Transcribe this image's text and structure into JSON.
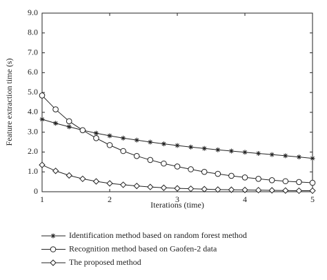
{
  "chart_data": {
    "type": "line",
    "xlabel": "Iterations (time)",
    "ylabel": "Feature extraction time (s)",
    "x": [
      1,
      1.2,
      1.4,
      1.6,
      1.8,
      2,
      2.2,
      2.4,
      2.6,
      2.8,
      3,
      3.2,
      3.4,
      3.6,
      3.8,
      4,
      4.2,
      4.4,
      4.6,
      4.8,
      5
    ],
    "xlim": [
      1,
      5
    ],
    "xticks": [
      1,
      2,
      3,
      4,
      5
    ],
    "ylim": [
      0,
      9
    ],
    "yticks": [
      0,
      {
        "value": 1,
        "label": "1.0"
      },
      {
        "value": 2,
        "label": "2.0"
      },
      {
        "value": 3,
        "label": "3.0"
      },
      {
        "value": 4,
        "label": "4.0"
      },
      {
        "value": 5,
        "label": "5.0"
      },
      {
        "value": 6,
        "label": "6.0"
      },
      {
        "value": 7,
        "label": "7.0"
      },
      {
        "value": 8,
        "label": "8.0"
      },
      {
        "value": 9,
        "label": "9.0"
      }
    ],
    "series": [
      {
        "name": "Identification method based on random forest method",
        "color": "#222222",
        "marker": "asterisk",
        "values": [
          3.65,
          3.45,
          3.27,
          3.1,
          2.95,
          2.82,
          2.7,
          2.6,
          2.5,
          2.41,
          2.33,
          2.25,
          2.18,
          2.11,
          2.05,
          1.99,
          1.93,
          1.87,
          1.81,
          1.75,
          1.68
        ]
      },
      {
        "name": "Recognition method based on Gaofen-2 data",
        "color": "#222222",
        "marker": "circle",
        "values": [
          4.85,
          4.15,
          3.55,
          3.1,
          2.7,
          2.35,
          2.05,
          1.8,
          1.6,
          1.42,
          1.27,
          1.13,
          1.0,
          0.9,
          0.8,
          0.72,
          0.65,
          0.58,
          0.53,
          0.49,
          0.45
        ]
      },
      {
        "name": "The proposed method",
        "color": "#222222",
        "marker": "diamond",
        "values": [
          1.35,
          1.05,
          0.82,
          0.65,
          0.52,
          0.42,
          0.35,
          0.29,
          0.24,
          0.2,
          0.17,
          0.15,
          0.13,
          0.11,
          0.1,
          0.09,
          0.08,
          0.07,
          0.06,
          0.05,
          0.05
        ]
      }
    ]
  }
}
